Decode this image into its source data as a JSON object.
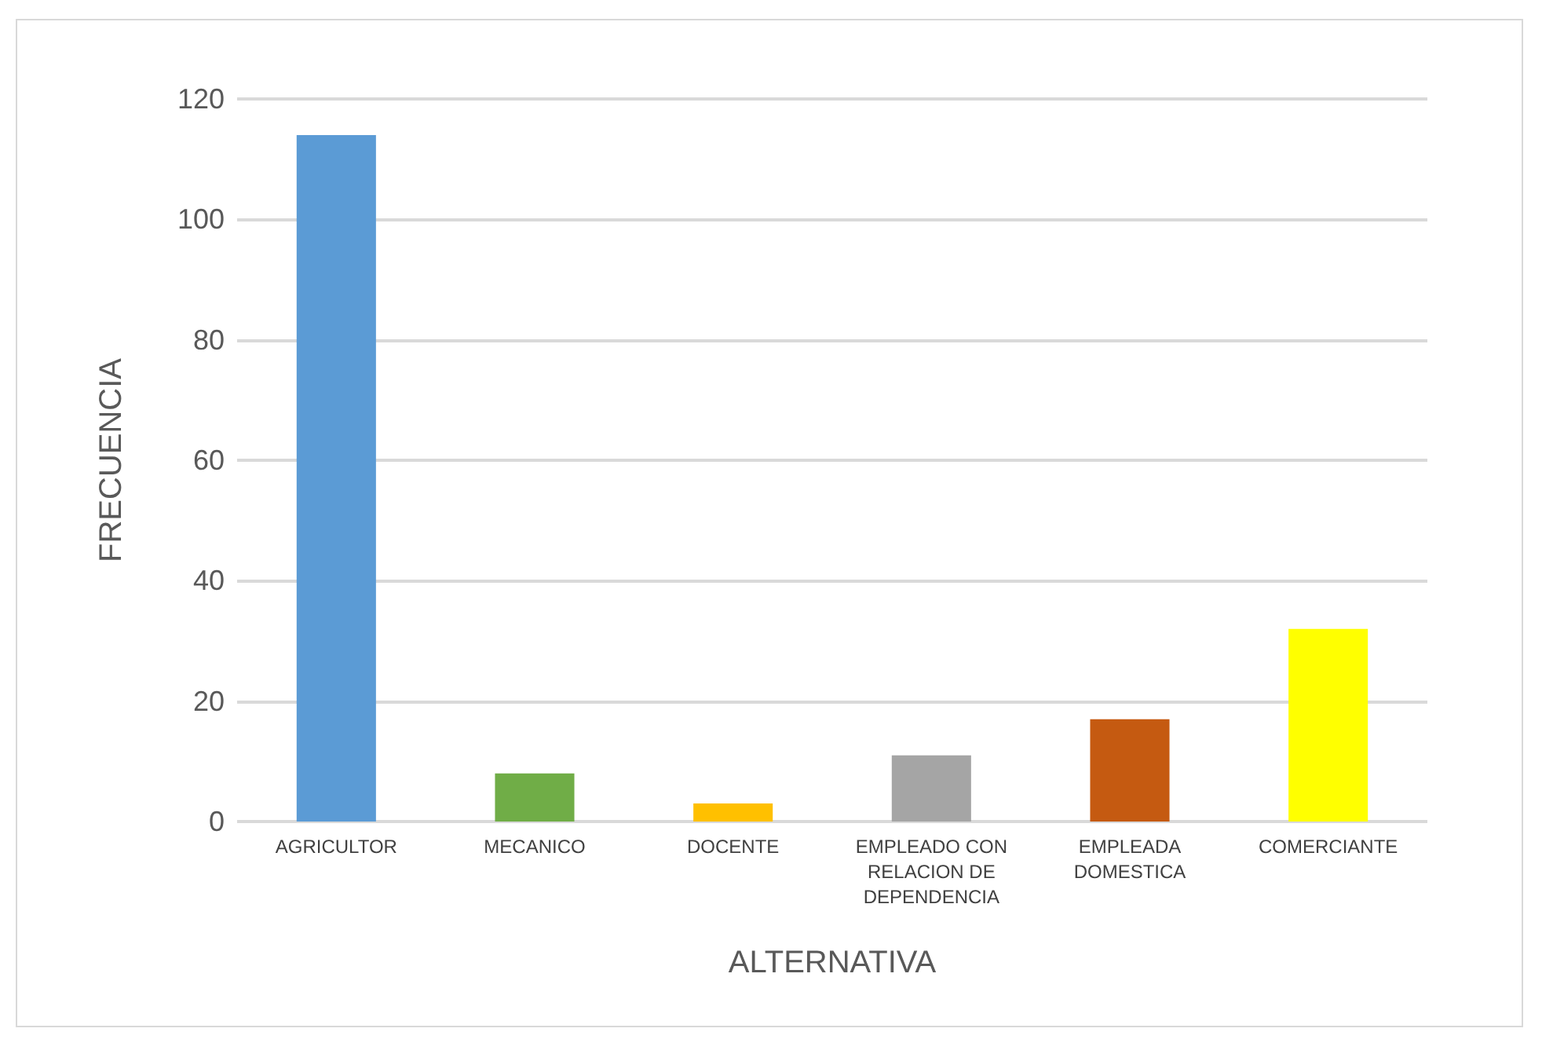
{
  "chart_data": {
    "type": "bar",
    "xlabel": "ALTERNATIVA",
    "ylabel": "FRECUENCIA",
    "categories": [
      "AGRICULTOR",
      "MECANICO",
      "DOCENTE",
      "EMPLEADO CON RELACION DE DEPENDENCIA",
      "EMPLEADA DOMESTICA",
      "COMERCIANTE"
    ],
    "values": [
      114,
      8,
      3,
      11,
      17,
      32
    ],
    "colors": [
      "#5b9bd5",
      "#70ad47",
      "#ffc000",
      "#a5a5a5",
      "#c55a11",
      "#ffff00"
    ],
    "ylim": [
      0,
      120
    ],
    "yticks": [
      0,
      20,
      40,
      60,
      80,
      100,
      120
    ],
    "grid": "y"
  }
}
